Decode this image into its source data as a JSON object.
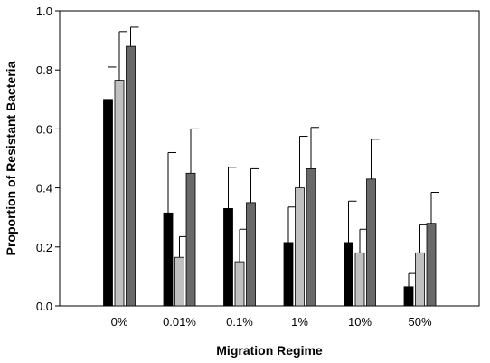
{
  "chart_data": {
    "type": "bar",
    "title": "",
    "xlabel": "Migration Regime",
    "ylabel": "Proportion of Resistant Bacteria",
    "ylim": [
      0,
      1.0
    ],
    "yticks": [
      0.0,
      0.2,
      0.4,
      0.6,
      0.8,
      1.0
    ],
    "ytick_labels": [
      "0.0",
      "0.2",
      "0.4",
      "0.6",
      "0.8",
      "1.0"
    ],
    "categories": [
      "0%",
      "0.01%",
      "0.1%",
      "1%",
      "10%",
      "50%"
    ],
    "grid": false,
    "legend": "none",
    "series": [
      {
        "color": "#000000",
        "values": [
          0.7,
          0.315,
          0.33,
          0.215,
          0.215,
          0.065
        ],
        "errors": [
          0.11,
          0.205,
          0.14,
          0.12,
          0.14,
          0.045
        ]
      },
      {
        "color": "#c0c0c0",
        "values": [
          0.765,
          0.165,
          0.15,
          0.4,
          0.18,
          0.18
        ],
        "errors": [
          0.165,
          0.07,
          0.11,
          0.175,
          0.08,
          0.095
        ]
      },
      {
        "color": "#696969",
        "values": [
          0.88,
          0.45,
          0.35,
          0.465,
          0.43,
          0.28
        ],
        "errors": [
          0.065,
          0.15,
          0.115,
          0.14,
          0.135,
          0.105
        ]
      }
    ]
  }
}
